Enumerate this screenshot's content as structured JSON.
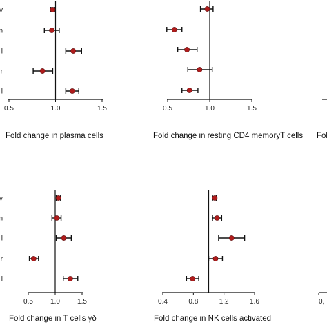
{
  "colors": {
    "point": "#b01c1c",
    "point_stroke": "#5a0c0c",
    "axis": "#111111",
    "errorbar": "#111111"
  },
  "chart_data": [
    {
      "type": "scatter",
      "xlabel": "Fold change in plasma cells",
      "xticks": [
        "0.5",
        "1.0",
        "1.5"
      ],
      "xlim": [
        0.5,
        1.5
      ],
      "reference_x": 1.0,
      "row_labels": [
        "v",
        "n",
        "l",
        "r",
        "l"
      ],
      "points": [
        {
          "est": 0.97,
          "lo": 0.95,
          "hi": 0.99
        },
        {
          "est": 0.96,
          "lo": 0.88,
          "hi": 1.04
        },
        {
          "est": 1.19,
          "lo": 1.11,
          "hi": 1.28
        },
        {
          "est": 0.86,
          "lo": 0.76,
          "hi": 0.97
        },
        {
          "est": 1.18,
          "lo": 1.11,
          "hi": 1.25
        }
      ]
    },
    {
      "type": "scatter",
      "xlabel": "Fold change in resting CD4 memoryT cells",
      "xticks": [
        "0.5",
        "1.0",
        "1.5"
      ],
      "xlim": [
        0.5,
        1.5
      ],
      "reference_x": 1.0,
      "row_labels": [],
      "points": [
        {
          "est": 0.97,
          "lo": 0.89,
          "hi": 1.04
        },
        {
          "est": 0.58,
          "lo": 0.49,
          "hi": 0.67
        },
        {
          "est": 0.73,
          "lo": 0.62,
          "hi": 0.85
        },
        {
          "est": 0.88,
          "lo": 0.74,
          "hi": 1.03
        },
        {
          "est": 0.76,
          "lo": 0.67,
          "hi": 0.86
        }
      ]
    },
    {
      "type": "scatter",
      "xlabel": "Fold",
      "xticks": [],
      "row_labels": [],
      "points": []
    },
    {
      "type": "scatter",
      "xlabel": "Fold change in T cells γδ",
      "xticks": [
        "0.5",
        "1.0",
        "1.5"
      ],
      "xlim": [
        0.5,
        1.5
      ],
      "reference_x": 1.0,
      "row_labels": [
        "v",
        "n",
        "l",
        "r",
        "l"
      ],
      "points": [
        {
          "est": 1.06,
          "lo": 1.02,
          "hi": 1.1
        },
        {
          "est": 1.03,
          "lo": 0.94,
          "hi": 1.11
        },
        {
          "est": 1.16,
          "lo": 1.02,
          "hi": 1.3
        },
        {
          "est": 0.6,
          "lo": 0.52,
          "hi": 0.69
        },
        {
          "est": 1.28,
          "lo": 1.15,
          "hi": 1.42
        }
      ]
    },
    {
      "type": "scatter",
      "xlabel": "Fold change in NK cells activated",
      "xticks": [
        "0.4",
        "0.8",
        "1.2",
        "1.6"
      ],
      "xlim": [
        0.4,
        1.6
      ],
      "reference_x": 1.0,
      "row_labels": [],
      "points": [
        {
          "est": 1.08,
          "lo": 1.05,
          "hi": 1.1
        },
        {
          "est": 1.11,
          "lo": 1.05,
          "hi": 1.17
        },
        {
          "est": 1.3,
          "lo": 1.13,
          "hi": 1.47
        },
        {
          "est": 1.09,
          "lo": 1.0,
          "hi": 1.18
        },
        {
          "est": 0.79,
          "lo": 0.71,
          "hi": 0.87
        }
      ]
    },
    {
      "type": "scatter",
      "xlabel": "",
      "xticks": [
        "0,"
      ],
      "row_labels": [],
      "points": []
    }
  ]
}
